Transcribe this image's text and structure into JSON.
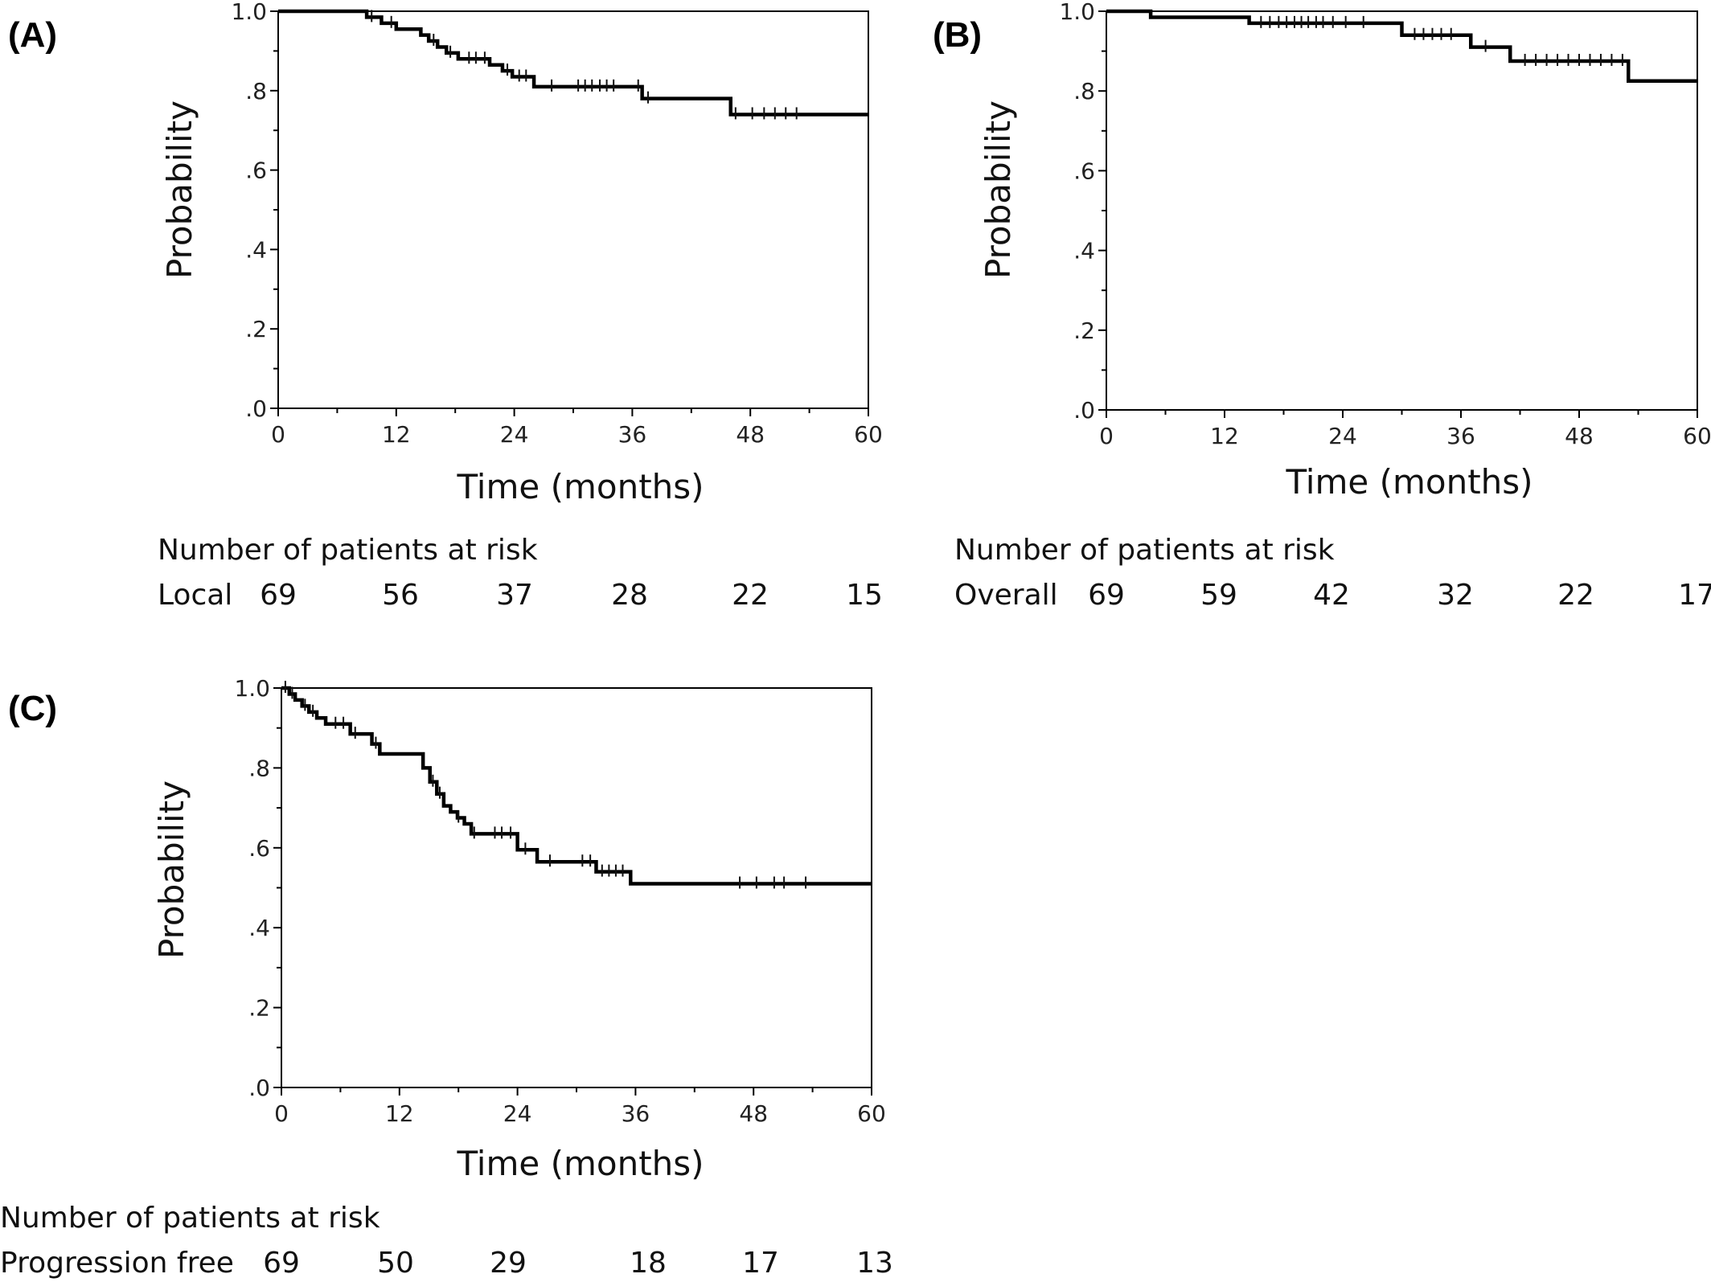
{
  "chart_data": [
    {
      "type": "line",
      "panel_label": "(A)",
      "xlabel": "Time (months)",
      "ylabel": "Probability",
      "xlim": [
        0,
        60
      ],
      "ylim": [
        0,
        1
      ],
      "x_ticks": [
        0,
        12,
        24,
        36,
        48,
        60
      ],
      "x_tick_labels": [
        "0",
        "12",
        "24",
        "36",
        "48",
        "60"
      ],
      "y_ticks": [
        0,
        0.2,
        0.4,
        0.6,
        0.8,
        1.0
      ],
      "y_tick_labels": [
        ".0",
        ".2",
        ".4",
        ".6",
        ".8",
        "1.0"
      ],
      "series": [
        {
          "x": [
            0,
            9,
            10.5,
            12,
            14.5,
            15.3,
            16.2,
            17.1,
            18.3,
            21.5,
            22.8,
            23.8,
            26,
            37,
            46,
            60
          ],
          "y": [
            1.0,
            0.985,
            0.97,
            0.955,
            0.94,
            0.925,
            0.91,
            0.895,
            0.88,
            0.865,
            0.85,
            0.835,
            0.81,
            0.78,
            0.74,
            0.74
          ],
          "censored": [
            [
              9.5,
              0.985
            ],
            [
              11.5,
              0.97
            ],
            [
              15.8,
              0.925
            ],
            [
              17.5,
              0.895
            ],
            [
              19.4,
              0.88
            ],
            [
              20.1,
              0.88
            ],
            [
              21,
              0.88
            ],
            [
              23.3,
              0.85
            ],
            [
              24.5,
              0.835
            ],
            [
              25.2,
              0.835
            ],
            [
              27.8,
              0.81
            ],
            [
              30.5,
              0.81
            ],
            [
              31.2,
              0.81
            ],
            [
              31.9,
              0.81
            ],
            [
              32.7,
              0.81
            ],
            [
              33.4,
              0.81
            ],
            [
              34.1,
              0.81
            ],
            [
              36.6,
              0.81
            ],
            [
              37.6,
              0.78
            ],
            [
              46.5,
              0.74
            ],
            [
              48.2,
              0.74
            ],
            [
              49.4,
              0.74
            ],
            [
              50.5,
              0.74
            ],
            [
              51.6,
              0.74
            ],
            [
              52.7,
              0.74
            ]
          ]
        }
      ],
      "risk_table": {
        "header": "Number of patients at risk",
        "row_label": "Local",
        "values": [
          "69",
          "56",
          "37",
          "28",
          "22",
          "15"
        ]
      }
    },
    {
      "type": "line",
      "panel_label": "(B)",
      "xlabel": "Time (months)",
      "ylabel": "Probability",
      "xlim": [
        0,
        60
      ],
      "ylim": [
        0,
        1
      ],
      "x_ticks": [
        0,
        12,
        24,
        36,
        48,
        60
      ],
      "x_tick_labels": [
        "0",
        "12",
        "24",
        "36",
        "48",
        "60"
      ],
      "y_ticks": [
        0,
        0.2,
        0.4,
        0.6,
        0.8,
        1.0
      ],
      "y_tick_labels": [
        ".0",
        ".2",
        ".4",
        ".6",
        ".8",
        "1.0"
      ],
      "series": [
        {
          "x": [
            0,
            4.5,
            14.5,
            30,
            37,
            41,
            53,
            60
          ],
          "y": [
            1.0,
            0.985,
            0.97,
            0.94,
            0.91,
            0.875,
            0.825,
            0.825
          ],
          "censored": [
            [
              15.7,
              0.97
            ],
            [
              16.6,
              0.97
            ],
            [
              17.5,
              0.97
            ],
            [
              18.3,
              0.97
            ],
            [
              19.1,
              0.97
            ],
            [
              19.8,
              0.97
            ],
            [
              20.5,
              0.97
            ],
            [
              21.3,
              0.97
            ],
            [
              22,
              0.97
            ],
            [
              23,
              0.97
            ],
            [
              24.3,
              0.97
            ],
            [
              26.1,
              0.97
            ],
            [
              31.3,
              0.94
            ],
            [
              32.2,
              0.94
            ],
            [
              33.1,
              0.94
            ],
            [
              34,
              0.94
            ],
            [
              35,
              0.94
            ],
            [
              38.5,
              0.91
            ],
            [
              42.5,
              0.875
            ],
            [
              43.6,
              0.875
            ],
            [
              44.7,
              0.875
            ],
            [
              45.8,
              0.875
            ],
            [
              46.9,
              0.875
            ],
            [
              48,
              0.875
            ],
            [
              49.1,
              0.875
            ],
            [
              50.2,
              0.875
            ],
            [
              51.3,
              0.875
            ],
            [
              52.4,
              0.875
            ]
          ]
        }
      ],
      "risk_table": {
        "header": "Number of patients at risk",
        "row_label": "Overall",
        "values": [
          "69",
          "59",
          "42",
          "32",
          "22",
          "17"
        ]
      }
    },
    {
      "type": "line",
      "panel_label": "(C)",
      "xlabel": "Time (months)",
      "ylabel": "Probability",
      "xlim": [
        0,
        60
      ],
      "ylim": [
        0,
        1
      ],
      "x_ticks": [
        0,
        12,
        24,
        36,
        48,
        60
      ],
      "x_tick_labels": [
        "0",
        "12",
        "24",
        "36",
        "48",
        "60"
      ],
      "y_ticks": [
        0,
        0.2,
        0.4,
        0.6,
        0.8,
        1.0
      ],
      "y_tick_labels": [
        ".0",
        ".2",
        ".4",
        ".6",
        ".8",
        "1.0"
      ],
      "series": [
        {
          "x": [
            0,
            0.8,
            1.4,
            2.1,
            2.8,
            3.6,
            4.5,
            7,
            9.2,
            10,
            14.4,
            15.1,
            15.8,
            16.5,
            17.2,
            17.9,
            18.6,
            19.3,
            24,
            26,
            32,
            35.5,
            60
          ],
          "y": [
            1.0,
            0.985,
            0.97,
            0.955,
            0.94,
            0.925,
            0.91,
            0.885,
            0.86,
            0.835,
            0.8,
            0.765,
            0.735,
            0.705,
            0.69,
            0.675,
            0.66,
            0.635,
            0.595,
            0.565,
            0.54,
            0.51,
            0.51
          ],
          "censored": [
            [
              0.4,
              1.0
            ],
            [
              1.1,
              0.985
            ],
            [
              2.4,
              0.955
            ],
            [
              3.2,
              0.94
            ],
            [
              5.5,
              0.91
            ],
            [
              6.3,
              0.91
            ],
            [
              7.5,
              0.885
            ],
            [
              9.6,
              0.86
            ],
            [
              15.4,
              0.765
            ],
            [
              16.1,
              0.735
            ],
            [
              18,
              0.675
            ],
            [
              19.6,
              0.635
            ],
            [
              21.7,
              0.635
            ],
            [
              22.4,
              0.635
            ],
            [
              23.3,
              0.635
            ],
            [
              24.8,
              0.595
            ],
            [
              27.3,
              0.565
            ],
            [
              30.6,
              0.565
            ],
            [
              31.4,
              0.565
            ],
            [
              32.6,
              0.54
            ],
            [
              33.3,
              0.54
            ],
            [
              34,
              0.54
            ],
            [
              34.7,
              0.54
            ],
            [
              46.6,
              0.51
            ],
            [
              48.3,
              0.51
            ],
            [
              50.1,
              0.51
            ],
            [
              51.1,
              0.51
            ],
            [
              53.3,
              0.51
            ]
          ]
        }
      ],
      "risk_table": {
        "header": "Number of patients at risk",
        "row_label": "Progression free",
        "values": [
          "69",
          "50",
          "29",
          "18",
          "17",
          "13"
        ]
      }
    }
  ]
}
